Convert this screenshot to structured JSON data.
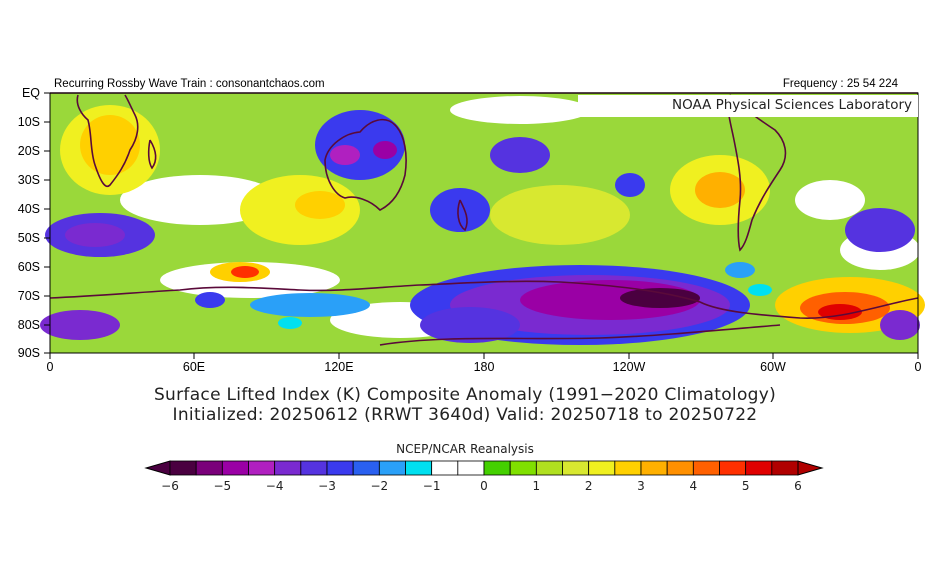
{
  "header": {
    "left": "Recurring Rossby Wave Train : consonantchaos.com",
    "right": "Frequency : 25 54 224",
    "watermark": "NOAA Physical Sciences Laboratory"
  },
  "map": {
    "lat_labels": [
      "EQ",
      "10S",
      "20S",
      "30S",
      "40S",
      "50S",
      "60S",
      "70S",
      "80S",
      "90S"
    ],
    "lon_labels": [
      "0",
      "60E",
      "120E",
      "180",
      "120W",
      "60W",
      "0"
    ],
    "grid_line_color": "#5a0a3a"
  },
  "titles": {
    "line1": "Surface Lifted Index (K) Composite Anomaly (1991−2020 Climatology)",
    "line2": "Initialized: 20250612 (RRWT 3640d) Valid: 20250718 to 20250722"
  },
  "colorbar": {
    "source": "NCEP/NCAR Reanalysis",
    "labels": [
      "−6",
      "−5",
      "−4",
      "−3",
      "−2",
      "−1",
      "0",
      "1",
      "2",
      "3",
      "4",
      "5",
      "6"
    ],
    "colors": [
      "#4a0040",
      "#7a007a",
      "#9a00a5",
      "#b020c0",
      "#7a2ad0",
      "#5533e0",
      "#3a3aee",
      "#2a60f0",
      "#2aa0f8",
      "#00e0f0",
      "#ffffff",
      "#ffffff",
      "#44d000",
      "#80e000",
      "#b0e020",
      "#d8e830",
      "#f0f020",
      "#ffd000",
      "#ffb000",
      "#ff9000",
      "#ff6000",
      "#ff3000",
      "#e00000",
      "#b00000"
    ]
  },
  "chart_data": {
    "type": "heatmap",
    "title": "Surface Lifted Index (K) Composite Anomaly (1991−2020 Climatology)",
    "subtitle": "Initialized: 20250612 (RRWT 3640d) Valid: 20250718 to 20250722",
    "xlabel": "",
    "ylabel": "",
    "x_ticks": [
      "0",
      "60E",
      "120E",
      "180",
      "120W",
      "60W",
      "0"
    ],
    "y_ticks": [
      "EQ",
      "10S",
      "20S",
      "30S",
      "40S",
      "50S",
      "60S",
      "70S",
      "80S",
      "90S"
    ],
    "value_range": [
      -6,
      6
    ],
    "units": "K",
    "features": [
      {
        "region": "Antarctic coast 180–90W",
        "anomaly": -5
      },
      {
        "region": "Southern Africa",
        "anomaly": 2
      },
      {
        "region": "Weddell Sea 40W–10W, 70–80S",
        "anomaly": 5
      },
      {
        "region": "Eastern Indian Ocean 65S",
        "anomaly": 4
      },
      {
        "region": "North Australia 20S",
        "anomaly": -4
      }
    ]
  }
}
